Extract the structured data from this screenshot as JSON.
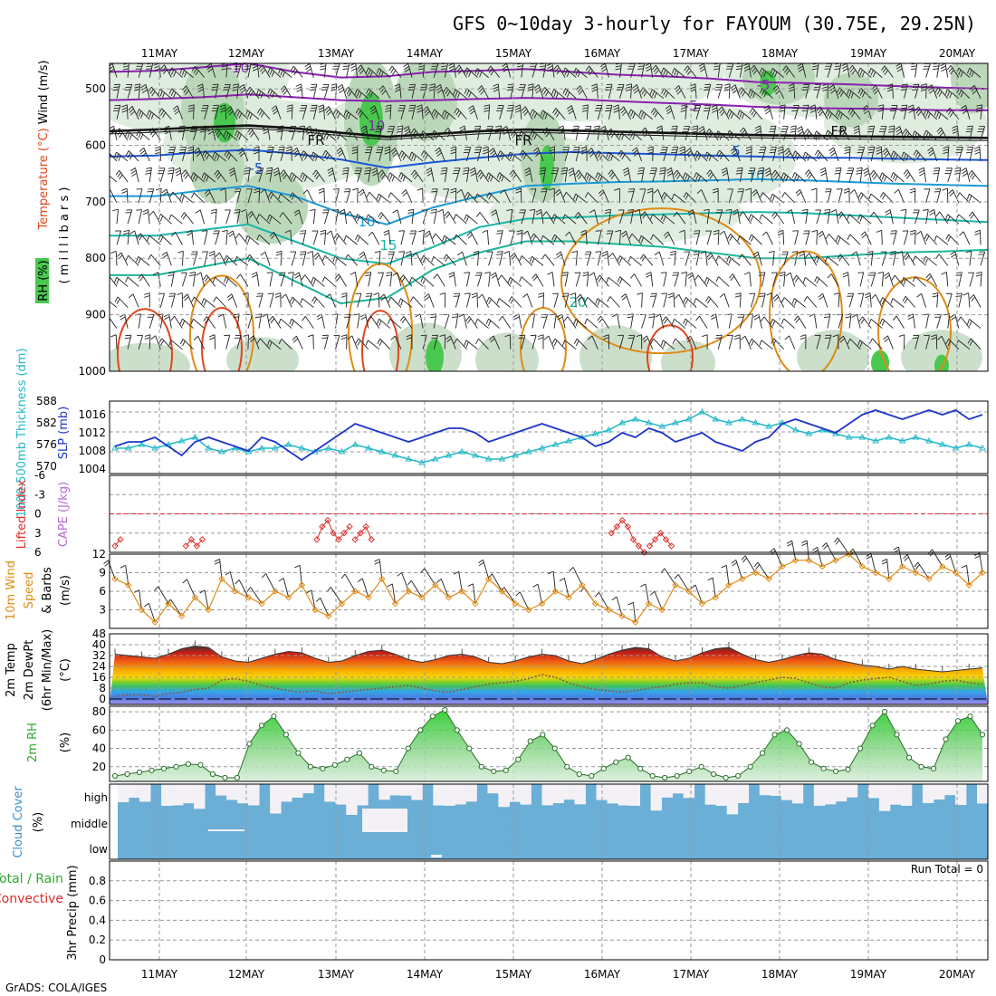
{
  "title": "GFS 0~10day 3-hourly for FAYOUM (30.75E, 29.25N)",
  "credit": "GrADS: COLA/IGES",
  "colors": {
    "sky": "#6baed6",
    "cloud": "#f3f1f5",
    "lcl": "#9e6fe0",
    "slp": "#1f35c8",
    "thick": "#22b8c8",
    "li": "#e02a2a",
    "wind": "#e08b14",
    "barb": "#7a5a3c",
    "rh": "#2ea82e",
    "temp_hi": "#c81e14"
  },
  "chart_data": [
    {
      "id": "upper",
      "type": "heatmap",
      "ylabel_parts": [
        "RH (%)",
        "Temperature (°C)",
        "Wind (m/s)"
      ],
      "ylabel_sub": "( m i l l i b a r s )",
      "yticks": [
        500,
        600,
        700,
        800,
        900,
        1000
      ],
      "ylim": [
        455,
        1000
      ],
      "contour_labels": [
        "-10",
        "-5",
        "-10",
        "-5",
        "FR",
        "FR",
        "FR",
        "-5",
        "5",
        "10",
        "10",
        "15",
        "20"
      ],
      "isotherms": [
        {
          "name": "-10",
          "p": [
            470,
            468,
            462,
            455,
            470,
            480,
            478,
            470,
            468,
            465,
            470,
            475,
            478,
            482,
            488,
            490,
            492,
            495,
            498,
            500
          ]
        },
        {
          "name": "-5",
          "p": [
            520,
            518,
            515,
            510,
            515,
            520,
            522,
            520,
            518,
            516,
            518,
            522,
            525,
            528,
            532,
            534,
            535,
            536,
            538,
            538
          ]
        },
        {
          "name": "FR",
          "p": [
            575,
            572,
            568,
            565,
            570,
            578,
            585,
            580,
            575,
            572,
            574,
            576,
            578,
            580,
            582,
            583,
            584,
            585,
            586,
            587
          ]
        },
        {
          "name": "5",
          "p": [
            620,
            618,
            612,
            608,
            615,
            625,
            640,
            630,
            622,
            615,
            612,
            614,
            616,
            618,
            620,
            622,
            622,
            624,
            625,
            626
          ]
        },
        {
          "name": "10",
          "p": [
            690,
            690,
            680,
            672,
            690,
            720,
            740,
            710,
            690,
            672,
            668,
            665,
            664,
            662,
            660,
            662,
            665,
            668,
            670,
            672
          ]
        },
        {
          "name": "15",
          "p": [
            760,
            760,
            750,
            740,
            770,
            800,
            810,
            780,
            745,
            730,
            728,
            724,
            722,
            720,
            718,
            720,
            724,
            728,
            732,
            736
          ]
        },
        {
          "name": "20",
          "p": [
            830,
            830,
            815,
            800,
            840,
            880,
            870,
            820,
            790,
            770,
            770,
            775,
            780,
            790,
            800,
            800,
            795,
            790,
            788,
            785
          ]
        }
      ]
    },
    {
      "id": "slp_thick",
      "type": "line",
      "ylabel_left": "1000-500mb Thickness (dm)",
      "ylabel_right": "SLP (mb)",
      "ylim_left": [
        568,
        588
      ],
      "yticks_left": [
        570,
        576,
        582,
        588
      ],
      "ylim_right": [
        1003,
        1019
      ],
      "yticks_right": [
        1004,
        1008,
        1012,
        1016
      ],
      "series": [
        {
          "role": "slp",
          "values": [
            1009,
            1010,
            1010,
            1011,
            1009,
            1007,
            1010,
            1011,
            1010,
            1009,
            1008,
            1011,
            1010,
            1008,
            1006,
            1008,
            1010,
            1012,
            1014,
            1013,
            1012,
            1011,
            1010,
            1011,
            1012,
            1013,
            1013,
            1012,
            1010,
            1011,
            1012,
            1013,
            1014,
            1013,
            1012,
            1011,
            1009,
            1010,
            1012,
            1011,
            1013,
            1012,
            1010,
            1011,
            1012,
            1010,
            1009,
            1008,
            1010,
            1011,
            1014,
            1015,
            1014,
            1013,
            1012,
            1014,
            1016,
            1017,
            1016,
            1015,
            1016,
            1017,
            1016,
            1017,
            1015,
            1016
          ]
        },
        {
          "role": "thickness",
          "values": [
            575,
            575,
            576,
            575,
            576,
            577,
            578,
            575,
            574,
            575,
            574,
            575,
            575,
            576,
            575,
            574,
            575,
            574,
            576,
            575,
            574,
            573,
            572,
            571,
            572,
            573,
            574,
            573,
            572,
            572,
            573,
            574,
            575,
            576,
            577,
            578,
            579,
            580,
            582,
            583,
            582,
            581,
            582,
            583,
            585,
            583,
            582,
            583,
            582,
            581,
            582,
            580,
            579,
            580,
            579,
            578,
            578,
            577,
            578,
            577,
            578,
            577,
            576,
            575,
            576,
            575
          ]
        }
      ]
    },
    {
      "id": "lifted_index",
      "type": "line",
      "ylabel_left": "Lifted Index",
      "ylabel_right": "CAPE (J/kg)",
      "yticks": [
        -6,
        -3,
        0,
        3,
        6
      ],
      "ylim": [
        -6,
        6
      ],
      "reference_line": 0,
      "segments": [
        {
          "x": [
            0,
            1
          ],
          "values": [
            5,
            4
          ]
        },
        {
          "x": [
            13,
            14,
            15,
            16
          ],
          "values": [
            5,
            4,
            5,
            4
          ]
        },
        {
          "x": [
            37,
            38,
            39,
            40,
            41,
            42,
            43
          ],
          "values": [
            4,
            2,
            1,
            3,
            4,
            3,
            2
          ]
        },
        {
          "x": [
            44,
            45,
            46,
            47
          ],
          "values": [
            4,
            3,
            2,
            4
          ]
        },
        {
          "x": [
            91,
            92,
            93,
            94,
            95,
            96,
            97
          ],
          "values": [
            3,
            2,
            1,
            2,
            4,
            5,
            6
          ]
        },
        {
          "x": [
            98,
            99,
            100,
            101,
            102
          ],
          "values": [
            5,
            4,
            3,
            4,
            5
          ]
        }
      ]
    },
    {
      "id": "wind10m",
      "type": "line",
      "ylabel_parts": [
        "10m Wind",
        "Speed",
        "& Barbs",
        "(m/s)"
      ],
      "yticks": [
        3,
        6,
        9,
        12
      ],
      "ylim": [
        0,
        12
      ],
      "series": [
        {
          "role": "speed",
          "values": [
            8,
            7,
            3,
            1,
            4,
            2,
            5,
            3,
            8,
            6,
            5,
            4,
            6,
            5,
            7,
            3,
            2,
            4,
            6,
            5,
            8,
            4,
            6,
            5,
            7,
            5,
            6,
            4,
            8,
            6,
            4,
            3,
            4,
            6,
            5,
            7,
            4,
            3,
            2,
            1,
            4,
            3,
            7,
            6,
            4,
            5,
            7,
            8,
            9,
            8,
            10,
            11,
            11,
            10,
            11,
            12,
            10,
            9,
            8,
            10,
            9,
            8,
            10,
            9,
            7,
            9
          ]
        }
      ]
    },
    {
      "id": "temp2m",
      "type": "area",
      "ylabel_parts": [
        "2m Temp",
        "2m DewPt",
        "(6hr Min/Max)",
        "(°C)"
      ],
      "yticks": [
        0,
        8,
        16,
        24,
        32,
        40,
        48
      ],
      "ylim": [
        -4,
        48
      ],
      "series": [
        {
          "role": "temp",
          "values": [
            33,
            32,
            31,
            30,
            33,
            37,
            39,
            38,
            31,
            28,
            27,
            30,
            33,
            35,
            34,
            30,
            27,
            28,
            32,
            35,
            36,
            33,
            29,
            27,
            29,
            32,
            33,
            31,
            27,
            26,
            28,
            31,
            33,
            32,
            28,
            26,
            29,
            33,
            36,
            38,
            37,
            31,
            28,
            30,
            34,
            37,
            38,
            33,
            29,
            27,
            29,
            32,
            34,
            33,
            29,
            27,
            25,
            24,
            22,
            24,
            22,
            21,
            20,
            21,
            22,
            23
          ]
        },
        {
          "role": "dewpoint",
          "values": [
            2,
            3,
            3,
            2,
            4,
            5,
            7,
            8,
            14,
            15,
            13,
            10,
            8,
            6,
            5,
            6,
            4,
            5,
            6,
            7,
            8,
            9,
            10,
            8,
            6,
            5,
            7,
            9,
            11,
            12,
            13,
            15,
            18,
            16,
            12,
            9,
            7,
            6,
            5,
            6,
            8,
            9,
            11,
            12,
            12,
            9,
            8,
            10,
            12,
            14,
            16,
            15,
            12,
            9,
            8,
            12,
            14,
            15,
            16,
            13,
            10,
            11,
            13,
            14,
            12,
            11
          ]
        }
      ]
    },
    {
      "id": "rh2m",
      "type": "area",
      "ylabel_parts": [
        "2m RH",
        "(%)"
      ],
      "yticks": [
        20,
        40,
        60,
        80
      ],
      "ylim": [
        4,
        86
      ],
      "series": [
        {
          "role": "rh",
          "values": [
            10,
            12,
            14,
            16,
            18,
            20,
            23,
            22,
            12,
            8,
            8,
            45,
            65,
            75,
            55,
            35,
            20,
            18,
            22,
            28,
            35,
            20,
            16,
            15,
            40,
            60,
            75,
            82,
            60,
            40,
            20,
            15,
            16,
            28,
            48,
            55,
            40,
            20,
            12,
            10,
            18,
            25,
            30,
            18,
            10,
            8,
            10,
            15,
            20,
            12,
            8,
            10,
            20,
            35,
            55,
            60,
            45,
            25,
            18,
            15,
            17,
            40,
            65,
            80,
            55,
            30,
            20,
            18,
            50,
            70,
            75,
            55
          ]
        }
      ]
    },
    {
      "id": "cloud",
      "type": "heatmap",
      "ylabel": "Cloud Cover (%)",
      "rows": [
        "high",
        "middle",
        "low"
      ]
    },
    {
      "id": "precip",
      "type": "bar",
      "ylabel_left": "3hr Precip (mm)",
      "ylabel_side": [
        "Total / Rain",
        "Convective"
      ],
      "yticks": [
        0,
        0.2,
        0.4,
        0.6,
        0.8
      ],
      "ylim": [
        0,
        1.0
      ],
      "run_total_label": "Run Total =",
      "run_total": "0",
      "values": []
    }
  ],
  "x_axis": {
    "dates": [
      "11MAY",
      "12MAY",
      "13MAY",
      "14MAY",
      "15MAY",
      "16MAY",
      "17MAY",
      "18MAY",
      "19MAY",
      "20MAY"
    ],
    "steps": 80
  }
}
